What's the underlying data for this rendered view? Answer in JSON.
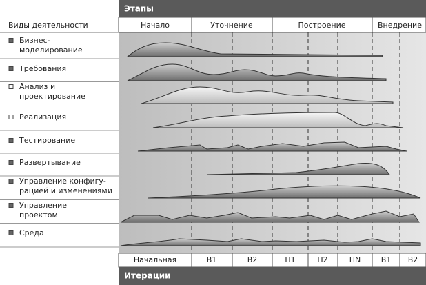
{
  "header": {
    "phases_title": "Этапы",
    "activities_title": "Виды деятельности",
    "iterations_title": "Итерации"
  },
  "phases": [
    "Начало",
    "Уточнение",
    "Построение",
    "Внедрение"
  ],
  "activities": [
    [
      "Бизнес-",
      "моделирование"
    ],
    [
      "Требования"
    ],
    [
      "Анализ и",
      "проектирование"
    ],
    [
      "Реализация"
    ],
    [
      "Тестирование"
    ],
    [
      "Развертывание"
    ],
    [
      "Управление конфигу-",
      "рацией и изменениями"
    ],
    [
      "Управление",
      "проектом"
    ],
    [
      "Среда"
    ]
  ],
  "iterations": [
    "Начальная",
    "В1",
    "В2",
    "П1",
    "П2",
    "ПN",
    "В1",
    "В2"
  ]
}
